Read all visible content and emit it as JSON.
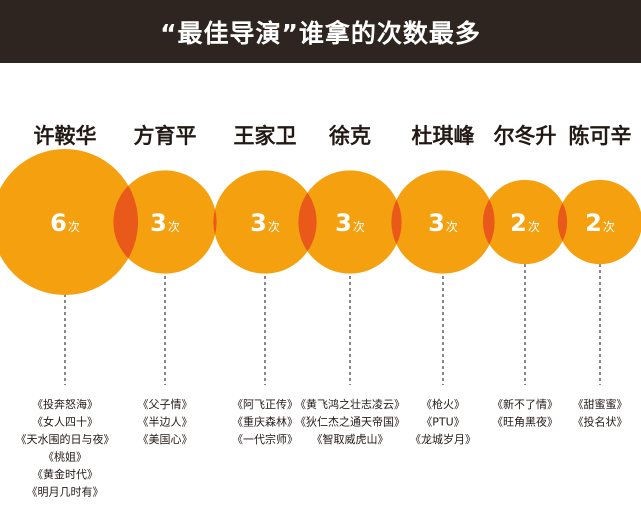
{
  "header": {
    "title": "“最佳导演”谁拿的次数最多"
  },
  "colors": {
    "header_bg": "#2e2521",
    "bubble": "#f5a10f",
    "overlap": "#e8591a",
    "text_dark": "#231a16"
  },
  "chart_data": {
    "type": "bubble",
    "title": "“最佳导演”谁拿的次数最多",
    "unit": "次",
    "directors": [
      {
        "name": "许鞍华",
        "count": 6,
        "films": [
          "《投奔怒海》",
          "《女人四十》",
          "《天水围的日与夜》",
          "《桃姐》",
          "《黄金时代》",
          "《明月几时有》"
        ]
      },
      {
        "name": "方育平",
        "count": 3,
        "films": [
          "《父子情》",
          "《半边人》",
          "《美国心》"
        ]
      },
      {
        "name": "王家卫",
        "count": 3,
        "films": [
          "《阿飞正传》",
          "《重庆森林》",
          "《一代宗师》"
        ]
      },
      {
        "name": "徐克",
        "count": 3,
        "films": [
          "《黄飞鸿之壮志凌云》",
          "《狄仁杰之通天帝国》",
          "《智取威虎山》"
        ]
      },
      {
        "name": "杜琪峰",
        "count": 3,
        "films": [
          "《枪火》",
          "《PTU》",
          "《龙城岁月》"
        ]
      },
      {
        "name": "尔冬升",
        "count": 2,
        "films": [
          "《新不了情》",
          "《旺角黑夜》"
        ]
      },
      {
        "name": "陈可辛",
        "count": 2,
        "films": [
          "《甜蜜蜜》",
          "《投名状》"
        ]
      }
    ]
  }
}
